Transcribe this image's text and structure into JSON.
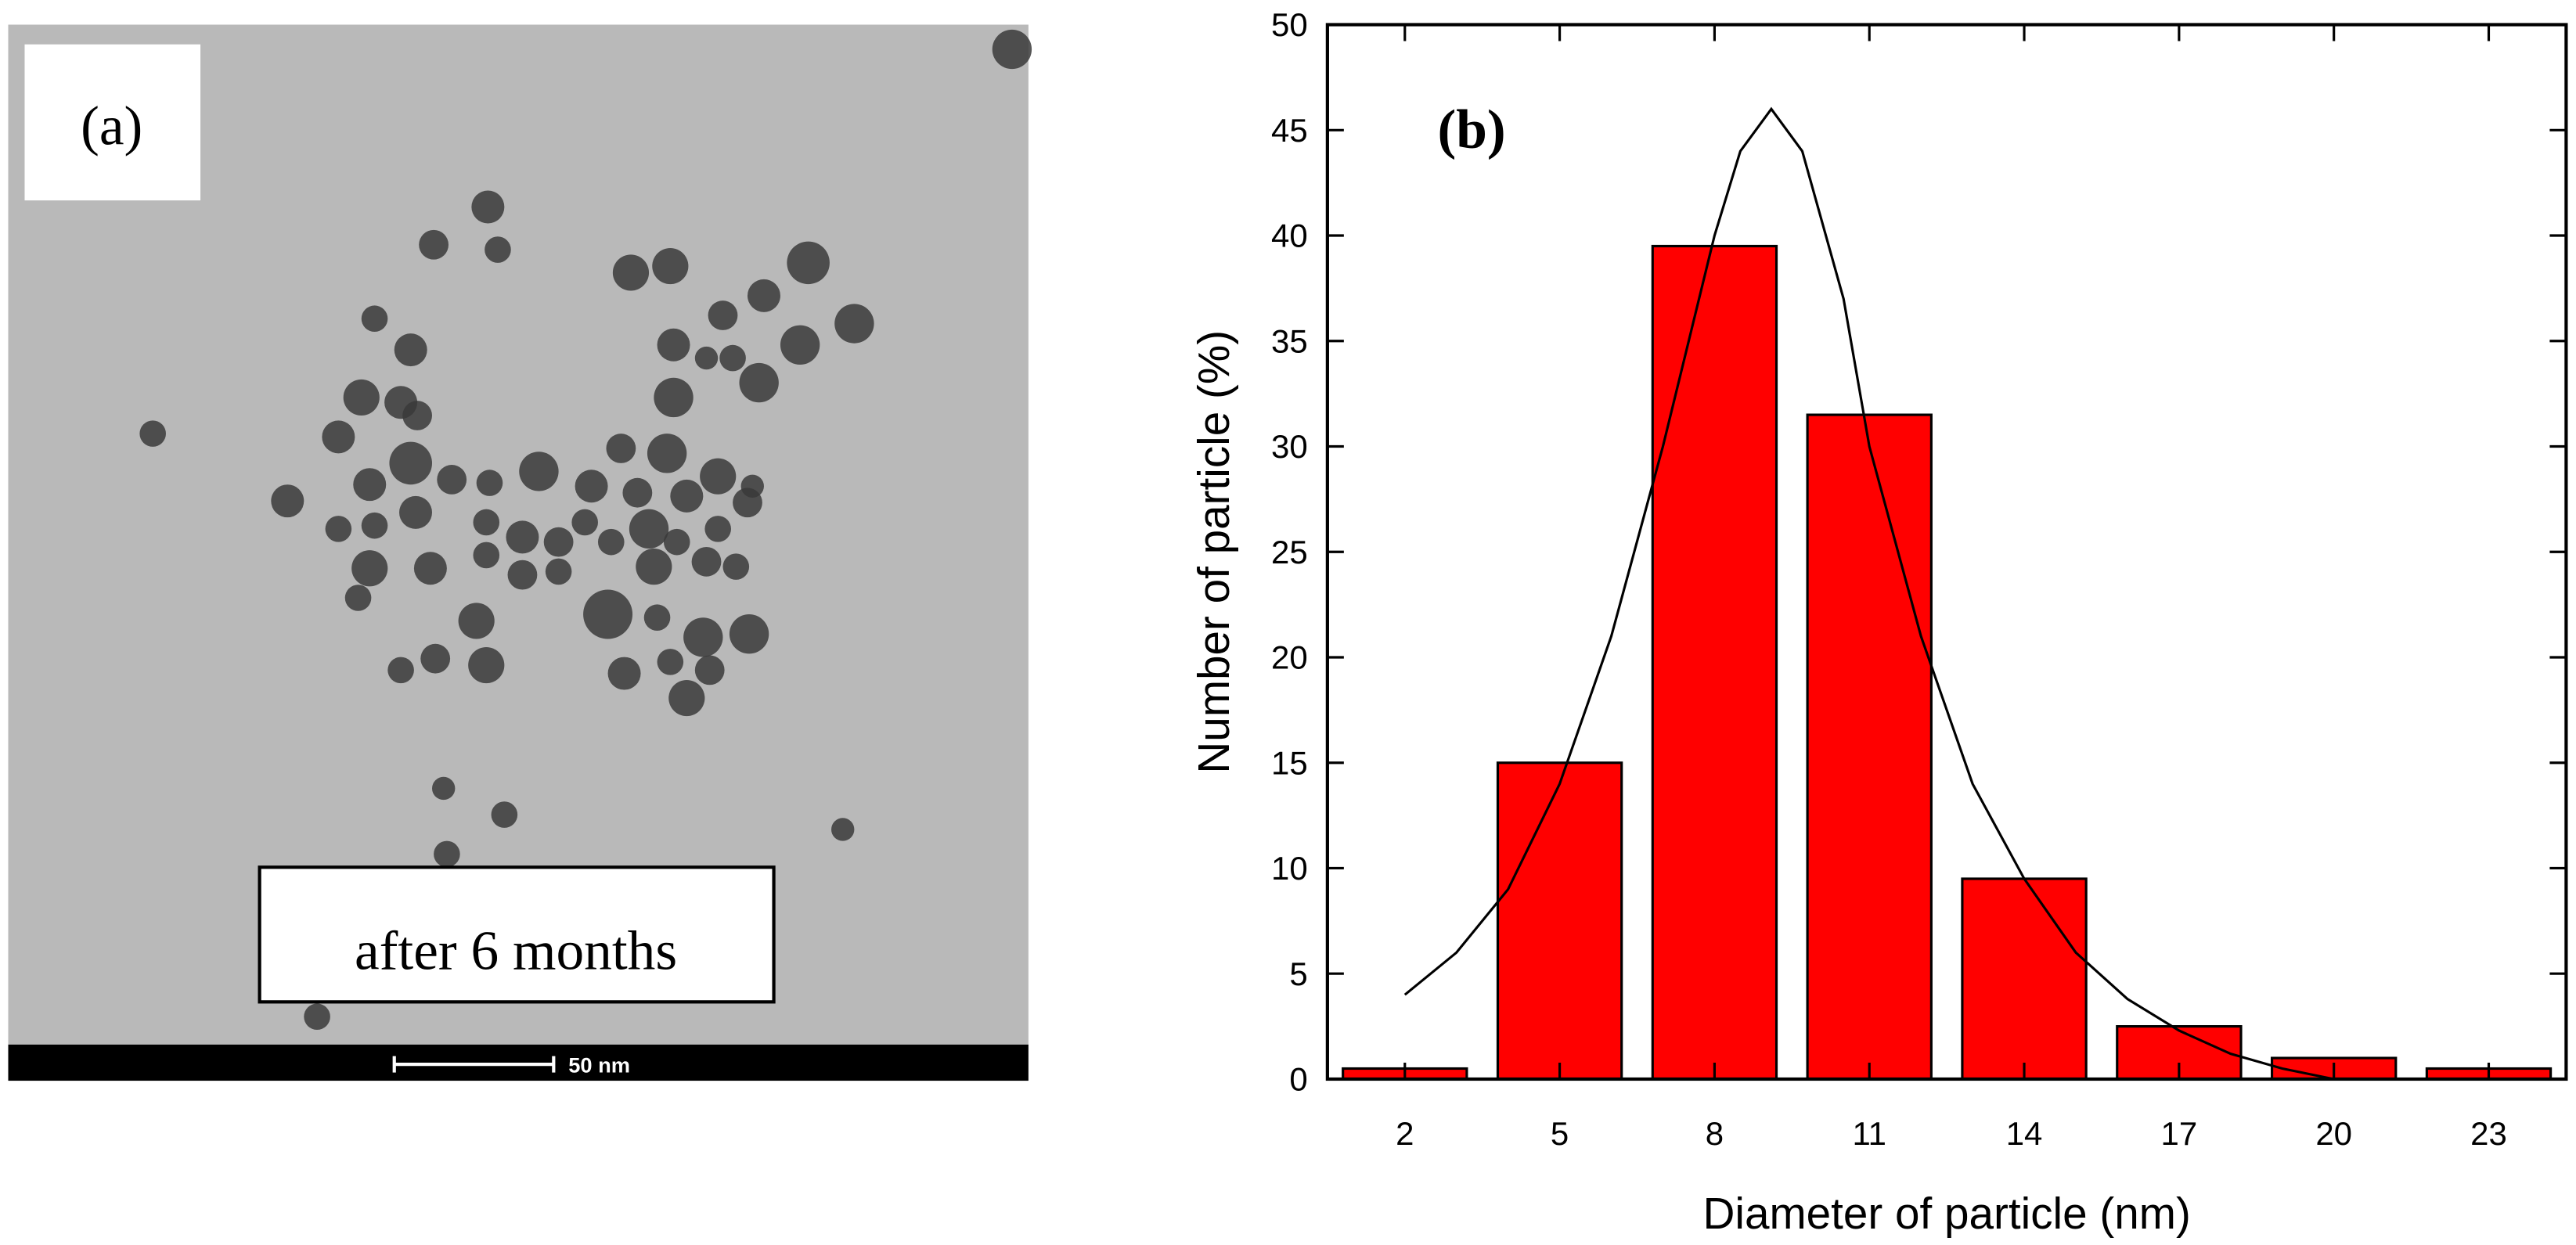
{
  "panel_a": {
    "label": "(a)",
    "caption": "after 6 months",
    "scale_bar": "50 nm"
  },
  "chart_data": {
    "type": "bar",
    "label": "(b)",
    "x_label": "Diameter of particle (nm)",
    "y_label": "Number of particle (%)",
    "x": [
      2,
      5,
      8,
      11,
      14,
      17,
      20,
      23
    ],
    "values": [
      0.5,
      15,
      39.5,
      31.5,
      9.5,
      2.5,
      1,
      0.5
    ],
    "color": "#ff0000",
    "xlim": [
      0.5,
      24.5
    ],
    "xticks": [
      2,
      5,
      8,
      11,
      14,
      17,
      20,
      23
    ],
    "ylim": [
      0,
      50
    ],
    "yticks": [
      0,
      5,
      10,
      15,
      20,
      25,
      30,
      35,
      40,
      45,
      50
    ],
    "curve": {
      "color": "#000000",
      "x": [
        2,
        3,
        4,
        5,
        6,
        7,
        8,
        8.5,
        9.1,
        9.7,
        10.5,
        11,
        12,
        13,
        14,
        15,
        16,
        17,
        18,
        19,
        20
      ],
      "y": [
        4,
        6,
        9,
        14,
        21,
        30,
        40,
        44,
        46,
        44,
        37,
        30,
        21,
        14,
        9.5,
        6,
        3.8,
        2.3,
        1.2,
        0.5,
        0
      ]
    }
  }
}
